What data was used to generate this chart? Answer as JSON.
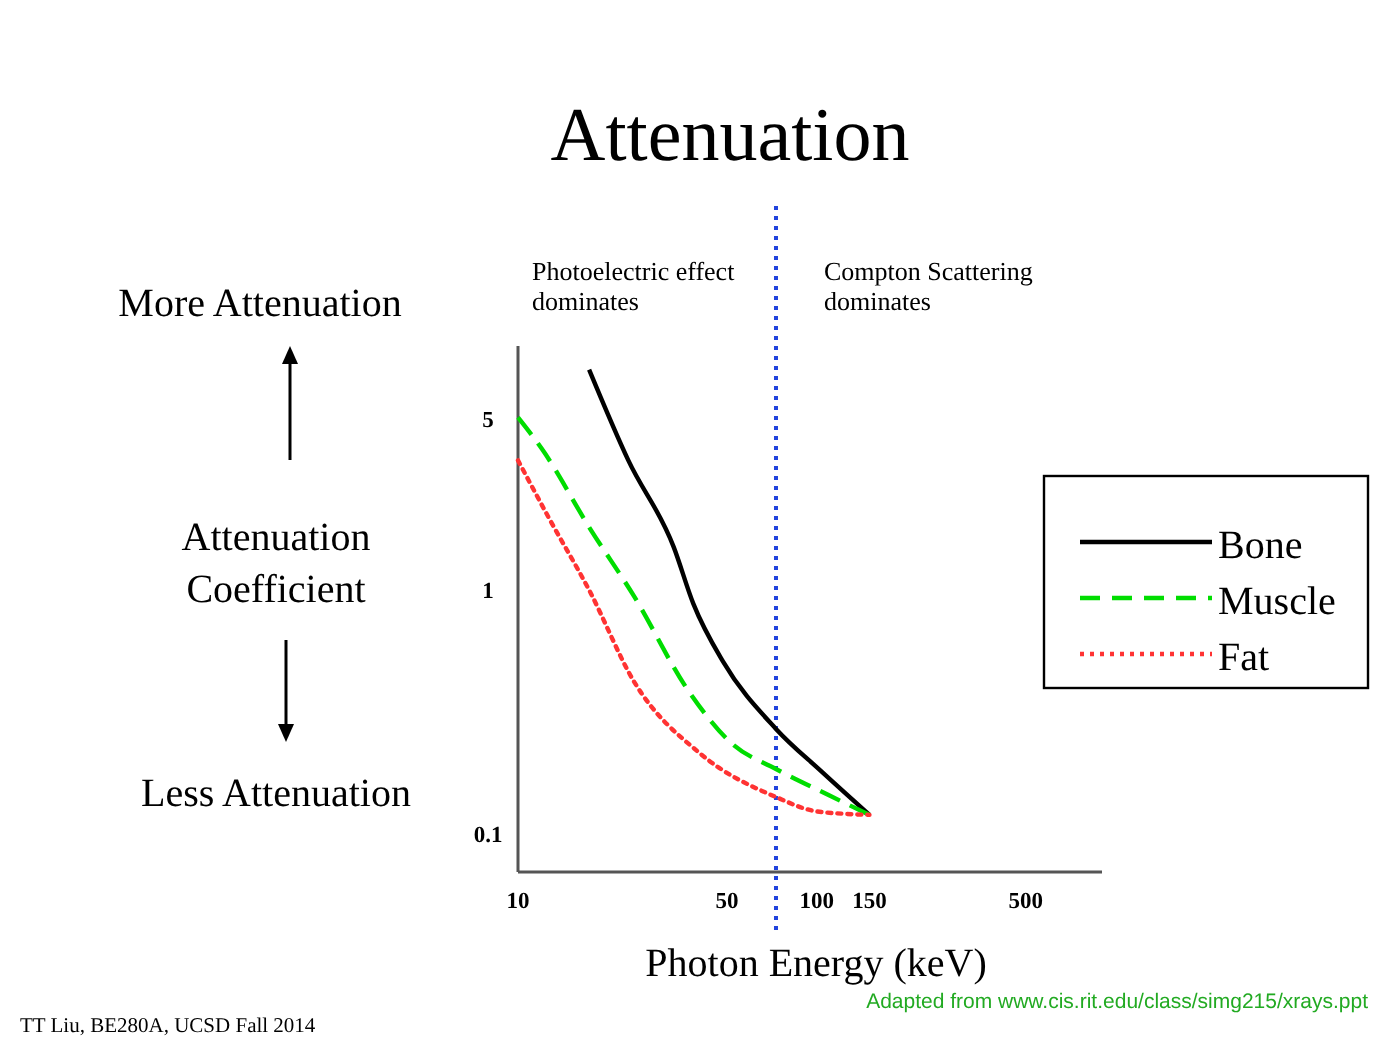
{
  "chart_data": {
    "type": "line",
    "title": "Attenuation",
    "xlabel": "Photon Energy (keV)",
    "ylabel": "Attenuation Coefficient",
    "log": "xy",
    "xlim": [
      10,
      900
    ],
    "ylim": [
      0.07,
      10
    ],
    "xticks": [
      10,
      50,
      100,
      150,
      500
    ],
    "yticks": [
      0.1,
      1,
      5
    ],
    "legend": "right",
    "grid": false,
    "series": [
      {
        "name": "Bone",
        "color": "#000000",
        "line_style": "solid",
        "x": [
          17.3,
          23.4,
          33.2,
          38.6,
          48.5,
          73,
          104,
          150
        ],
        "values": [
          8.0,
          3.4,
          1.5,
          0.88,
          0.51,
          0.27,
          0.18,
          0.12
        ]
      },
      {
        "name": "Muscle",
        "color": "#00dd00",
        "line_style": "dashed",
        "x": [
          10,
          12,
          17.5,
          24.5,
          37,
          52,
          73,
          109,
          150
        ],
        "values": [
          5.1,
          3.8,
          1.77,
          0.94,
          0.39,
          0.235,
          0.185,
          0.145,
          0.12
        ]
      },
      {
        "name": "Fat",
        "color": "#ff3333",
        "line_style": "dotted",
        "x": [
          10,
          12.7,
          17.3,
          24.5,
          40.5,
          73,
          100,
          150
        ],
        "values": [
          3.4,
          1.97,
          1.0,
          0.42,
          0.215,
          0.142,
          0.124,
          0.12
        ]
      }
    ],
    "ref_lines": [
      {
        "axis": "x",
        "value": 73,
        "color": "#2244dd",
        "line_style": "dotted"
      }
    ],
    "annotations": [
      "More Attenuation",
      "Less Attenuation",
      "Photoelectric effect dominates",
      "Compton Scattering dominates",
      "TT Liu, BE280A, UCSD Fall 2014",
      "Adapted from www.cis.rit.edu/class/simg215/xrays.ppt"
    ]
  }
}
